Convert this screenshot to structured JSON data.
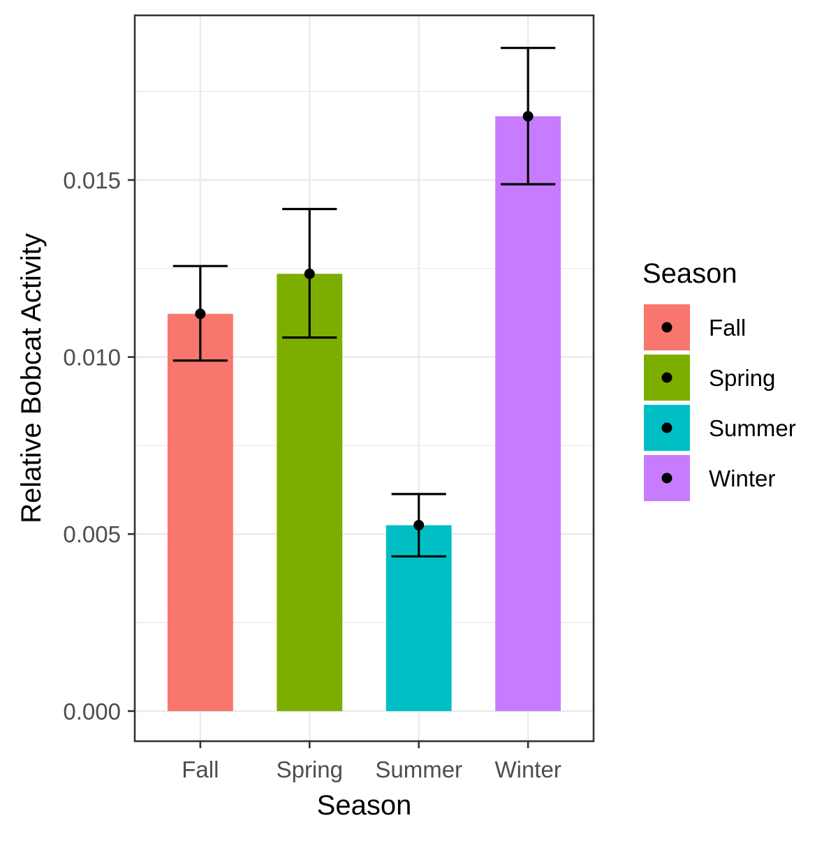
{
  "chart_data": {
    "type": "bar",
    "xlabel": "Season",
    "ylabel": "Relative Bobcat Activity",
    "categories": [
      "Fall",
      "Spring",
      "Summer",
      "Winter"
    ],
    "values": [
      0.01122,
      0.01235,
      0.00525,
      0.0168
    ],
    "error_bars": {
      "lower": [
        0.0099,
        0.01055,
        0.00437,
        0.01488
      ],
      "upper": [
        0.01257,
        0.01418,
        0.00613,
        0.01873
      ]
    },
    "colors": [
      "#F8766D",
      "#7CAE00",
      "#00BFC4",
      "#C77CFF"
    ],
    "ylim": [
      -0.00085,
      0.01965
    ],
    "yticks": [
      0.0,
      0.005,
      0.01,
      0.015
    ],
    "ytick_labels": [
      "0.000",
      "0.005",
      "0.010",
      "0.015"
    ],
    "grid": true,
    "legend": {
      "title": "Season",
      "placement": "right",
      "items": [
        "Fall",
        "Spring",
        "Summer",
        "Winter"
      ]
    }
  }
}
